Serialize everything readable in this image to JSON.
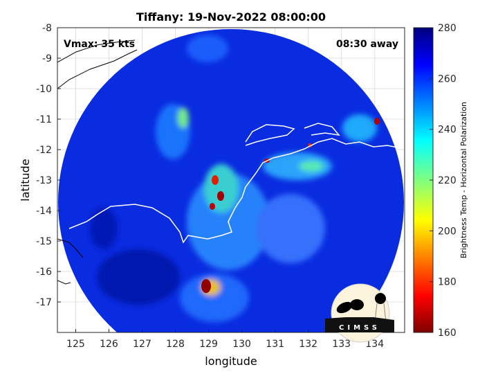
{
  "title": "Tiffany: 19-Nov-2022 08:00:00",
  "annotations": {
    "vmax": "Vmax: 35 kts",
    "away": "08:30 away"
  },
  "axes": {
    "xlabel": "longitude",
    "ylabel": "latitude",
    "xlim": [
      124.45,
      134.9
    ],
    "ylim": [
      -18,
      -8
    ],
    "xticks": [
      "125",
      "126",
      "127",
      "128",
      "129",
      "130",
      "131",
      "132",
      "133",
      "134"
    ],
    "yticks": [
      "-8",
      "-9",
      "-10",
      "-11",
      "-12",
      "-13",
      "-14",
      "-15",
      "-16",
      "-17"
    ],
    "grid": true
  },
  "colorbar": {
    "label": "Brightness Temp - Horizontal Polarization",
    "range": [
      160,
      280
    ],
    "ticks": [
      "280",
      "260",
      "240",
      "220",
      "200",
      "180",
      "160"
    ],
    "colormap": "jet"
  },
  "logo": {
    "text": "CIMSS"
  }
}
